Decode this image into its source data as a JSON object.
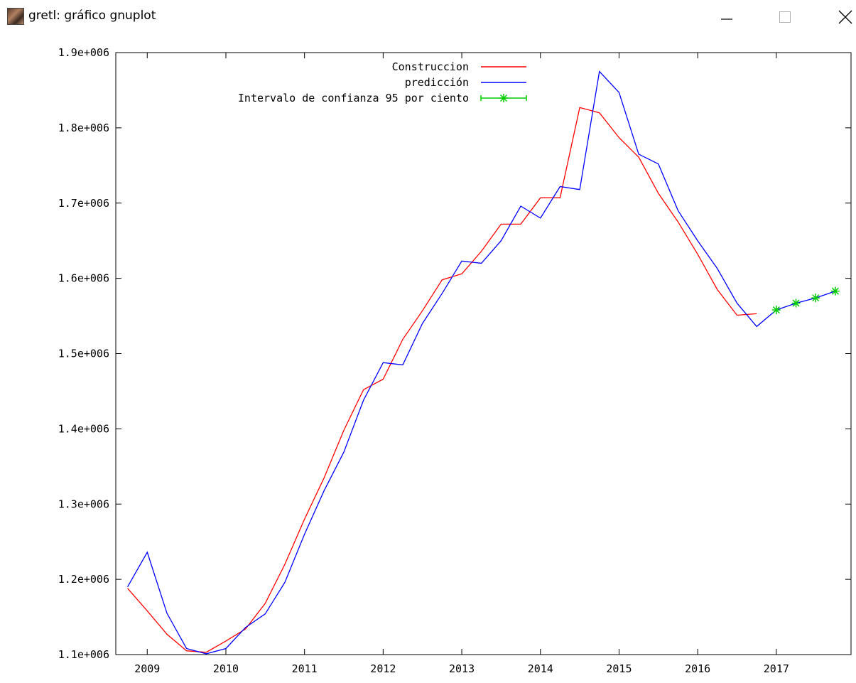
{
  "window": {
    "title": "gretl: gráfico gnuplot",
    "app_icon": "gretl-app-icon",
    "controls": {
      "minimize": "minimize-icon",
      "maximize": "maximize-icon",
      "close": "close-icon"
    }
  },
  "chart_data": {
    "type": "line",
    "title": "",
    "xlabel": "",
    "ylabel": "",
    "xlim": [
      2008.6,
      2017.95
    ],
    "ylim": [
      1100000,
      1900000
    ],
    "x_ticks": [
      2009,
      2010,
      2011,
      2012,
      2013,
      2014,
      2015,
      2016,
      2017
    ],
    "x_tick_labels": [
      "2009",
      "2010",
      "2011",
      "2012",
      "2013",
      "2014",
      "2015",
      "2016",
      "2017"
    ],
    "y_ticks": [
      1100000,
      1200000,
      1300000,
      1400000,
      1500000,
      1600000,
      1700000,
      1800000,
      1900000
    ],
    "y_tick_labels": [
      "1.1e+006",
      "1.2e+006",
      "1.3e+006",
      "1.4e+006",
      "1.5e+006",
      "1.6e+006",
      "1.7e+006",
      "1.8e+006",
      "1.9e+006"
    ],
    "grid": false,
    "legend_position": "top-center",
    "series": [
      {
        "name": "Construccion",
        "color": "#ff0000",
        "x": [
          2008.75,
          2009.0,
          2009.25,
          2009.5,
          2009.75,
          2010.0,
          2010.25,
          2010.5,
          2010.75,
          2011.0,
          2011.25,
          2011.5,
          2011.75,
          2012.0,
          2012.25,
          2012.5,
          2012.75,
          2013.0,
          2013.25,
          2013.5,
          2013.75,
          2014.0,
          2014.25,
          2014.5,
          2014.75,
          2015.0,
          2015.25,
          2015.5,
          2015.75,
          2016.0,
          2016.25,
          2016.5,
          2016.75
        ],
        "values": [
          1188000,
          1158000,
          1127000,
          1105000,
          1103000,
          1118000,
          1134000,
          1168000,
          1220000,
          1280000,
          1335000,
          1398000,
          1452000,
          1466000,
          1519000,
          1557000,
          1598000,
          1606000,
          1636000,
          1672000,
          1672000,
          1707000,
          1707000,
          1827000,
          1820000,
          1787000,
          1761000,
          1713000,
          1675000,
          1632000,
          1585000,
          1551000,
          1553000
        ]
      },
      {
        "name": "predicción",
        "color": "#0000ff",
        "x": [
          2008.75,
          2009.0,
          2009.25,
          2009.5,
          2009.75,
          2010.0,
          2010.25,
          2010.5,
          2010.75,
          2011.0,
          2011.25,
          2011.5,
          2011.75,
          2012.0,
          2012.25,
          2012.5,
          2012.75,
          2013.0,
          2013.25,
          2013.5,
          2013.75,
          2014.0,
          2014.25,
          2014.5,
          2014.75,
          2015.0,
          2015.25,
          2015.5,
          2015.75,
          2016.0,
          2016.25,
          2016.5,
          2016.75,
          2017.0,
          2017.25,
          2017.5,
          2017.75
        ],
        "values": [
          1190000,
          1236000,
          1155000,
          1108000,
          1101000,
          1108000,
          1136000,
          1154000,
          1196000,
          1260000,
          1318000,
          1369000,
          1438000,
          1488000,
          1485000,
          1540000,
          1580000,
          1623000,
          1620000,
          1650000,
          1696000,
          1680000,
          1722000,
          1718000,
          1875000,
          1847000,
          1765000,
          1752000,
          1690000,
          1650000,
          1613000,
          1567000,
          1536000,
          1558000,
          1567000,
          1574000,
          1583000
        ]
      },
      {
        "name": "Intervalo de confianza 95 por ciento",
        "color": "#00cc00",
        "x": [
          2017.0,
          2017.25,
          2017.5,
          2017.75
        ],
        "values": [
          1558000,
          1567000,
          1574000,
          1583000
        ]
      }
    ]
  }
}
